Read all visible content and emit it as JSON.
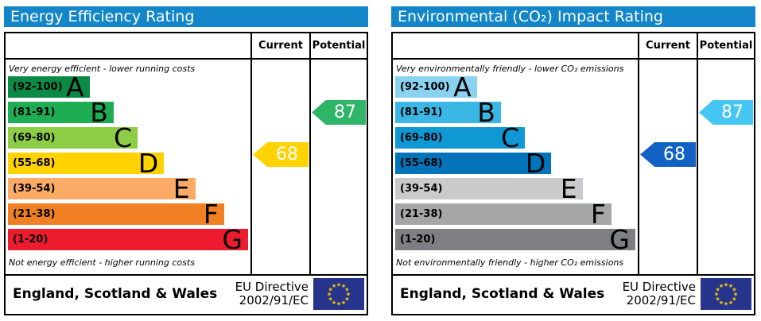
{
  "chart_data": [
    {
      "type": "bar",
      "title": "Energy Efficiency Rating",
      "categories": [
        "A",
        "B",
        "C",
        "D",
        "E",
        "F",
        "G"
      ],
      "band_ranges": [
        "(92-100)",
        "(81-91)",
        "(69-80)",
        "(55-68)",
        "(39-54)",
        "(21-38)",
        "(1-20)"
      ],
      "band_colors": [
        "#0b8a45",
        "#1fad53",
        "#8dcd46",
        "#ffd200",
        "#fbab66",
        "#f08023",
        "#ec1c2e"
      ],
      "band_widths_pct": [
        34,
        44,
        54,
        65,
        78,
        90,
        100
      ],
      "scale_range": [
        1,
        100
      ],
      "series": [
        {
          "name": "Current",
          "value": 68,
          "band": "D",
          "color": "#ffd200"
        },
        {
          "name": "Potential",
          "value": 87,
          "band": "B",
          "color": "#2eb567"
        }
      ],
      "annotations": [
        "Very energy efficient - lower running costs",
        "Not energy efficient - higher running costs"
      ],
      "footnote": "England, Scotland & Wales — EU Directive 2002/91/EC"
    },
    {
      "type": "bar",
      "title": "Environmental (CO₂) Impact Rating",
      "categories": [
        "A",
        "B",
        "C",
        "D",
        "E",
        "F",
        "G"
      ],
      "band_ranges": [
        "(92-100)",
        "(81-91)",
        "(69-80)",
        "(55-68)",
        "(39-54)",
        "(21-38)",
        "(1-20)"
      ],
      "band_colors": [
        "#8ad3f0",
        "#3ab7e4",
        "#0f98d3",
        "#0374ba",
        "#c9cacb",
        "#a4a6a8",
        "#7d7f82"
      ],
      "band_widths_pct": [
        34,
        44,
        54,
        65,
        78,
        90,
        100
      ],
      "scale_range": [
        1,
        100
      ],
      "series": [
        {
          "name": "Current",
          "value": 68,
          "band": "D",
          "color": "#1261c4"
        },
        {
          "name": "Potential",
          "value": 87,
          "band": "B",
          "color": "#45c6f2"
        }
      ],
      "annotations": [
        "Very environmentally friendly - lower CO₂ emissions",
        "Not environmentally friendly - higher CO₂ emissions"
      ],
      "footnote": "England, Scotland & Wales — EU Directive 2002/91/EC"
    }
  ],
  "panels": [
    {
      "title": "Energy Efficiency Rating",
      "accent_color": "#1286c9",
      "header": {
        "current_label": "Current",
        "potential_label": "Potential"
      },
      "top_caption": "Very energy efficient - lower running costs",
      "bottom_caption": "Not energy efficient - higher running costs",
      "bands": [
        {
          "range": "(92-100)",
          "letter": "A",
          "color": "#0b8a45",
          "width": "34%"
        },
        {
          "range": "(81-91)",
          "letter": "B",
          "color": "#1fad53",
          "width": "44%"
        },
        {
          "range": "(69-80)",
          "letter": "C",
          "color": "#8dcd46",
          "width": "54%"
        },
        {
          "range": "(55-68)",
          "letter": "D",
          "color": "#ffd200",
          "width": "65%"
        },
        {
          "range": "(39-54)",
          "letter": "E",
          "color": "#fbab66",
          "width": "78%"
        },
        {
          "range": "(21-38)",
          "letter": "F",
          "color": "#f08023",
          "width": "90%"
        },
        {
          "range": "(1-20)",
          "letter": "G",
          "color": "#ec1c2e",
          "width": "100%"
        }
      ],
      "current": {
        "value": "68",
        "color": "#ffd200"
      },
      "potential": {
        "value": "87",
        "color": "#2eb567"
      },
      "footer": {
        "region": "England, Scotland & Wales",
        "directive_line1": "EU Directive",
        "directive_line2": "2002/91/EC",
        "flag_bg": "#27348b",
        "flag_star_color": "#ffcc00"
      }
    },
    {
      "title": "Environmental (CO₂) Impact Rating",
      "accent_color": "#1286c9",
      "header": {
        "current_label": "Current",
        "potential_label": "Potential"
      },
      "top_caption": "Very environmentally friendly - lower CO₂ emissions",
      "bottom_caption": "Not environmentally friendly - higher CO₂ emissions",
      "bands": [
        {
          "range": "(92-100)",
          "letter": "A",
          "color": "#8ad3f0",
          "width": "34%"
        },
        {
          "range": "(81-91)",
          "letter": "B",
          "color": "#3ab7e4",
          "width": "44%"
        },
        {
          "range": "(69-80)",
          "letter": "C",
          "color": "#0f98d3",
          "width": "54%"
        },
        {
          "range": "(55-68)",
          "letter": "D",
          "color": "#0374ba",
          "width": "65%"
        },
        {
          "range": "(39-54)",
          "letter": "E",
          "color": "#c9cacb",
          "width": "78%"
        },
        {
          "range": "(21-38)",
          "letter": "F",
          "color": "#a4a6a8",
          "width": "90%"
        },
        {
          "range": "(1-20)",
          "letter": "G",
          "color": "#7d7f82",
          "width": "100%"
        }
      ],
      "current": {
        "value": "68",
        "color": "#1261c4"
      },
      "potential": {
        "value": "87",
        "color": "#45c6f2"
      },
      "footer": {
        "region": "England, Scotland & Wales",
        "directive_line1": "EU Directive",
        "directive_line2": "2002/91/EC",
        "flag_bg": "#27348b",
        "flag_star_color": "#ffcc00"
      }
    }
  ]
}
